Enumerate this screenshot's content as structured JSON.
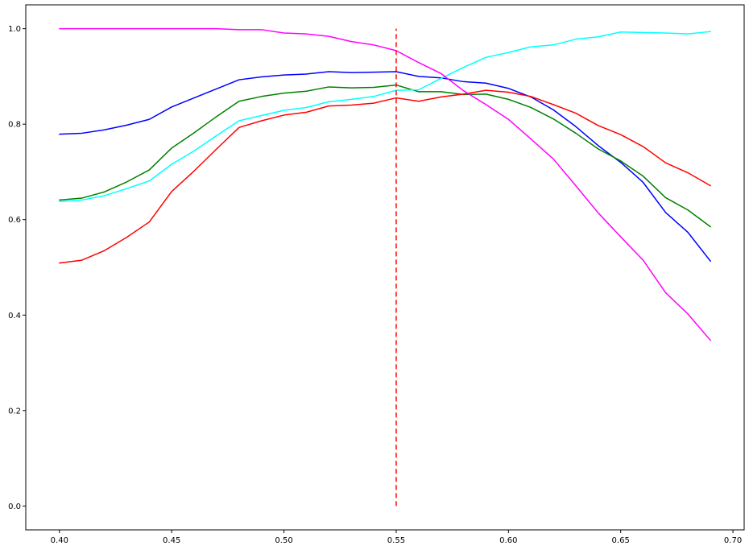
{
  "chart_data": {
    "type": "line",
    "title": "",
    "xlabel": "",
    "ylabel": "",
    "xlim": [
      0.385,
      0.705
    ],
    "ylim": [
      -0.05,
      1.05
    ],
    "grid": false,
    "x": [
      0.4,
      0.41,
      0.42,
      0.43,
      0.44,
      0.45,
      0.46,
      0.47,
      0.48,
      0.49,
      0.5,
      0.51,
      0.52,
      0.53,
      0.54,
      0.55,
      0.56,
      0.57,
      0.58,
      0.59,
      0.6,
      0.61,
      0.62,
      0.63,
      0.64,
      0.65,
      0.66,
      0.67,
      0.68,
      0.69
    ],
    "x_ticks": [
      "0.40",
      "0.45",
      "0.50",
      "0.55",
      "0.60",
      "0.65",
      "0.70"
    ],
    "y_ticks": [
      "0.0",
      "0.2",
      "0.4",
      "0.6",
      "0.8",
      "1.0"
    ],
    "x_tick_values": [
      0.4,
      0.45,
      0.5,
      0.55,
      0.6,
      0.65,
      0.7
    ],
    "y_tick_values": [
      0.0,
      0.2,
      0.4,
      0.6,
      0.8,
      1.0
    ],
    "series": [
      {
        "color": "#0000ff",
        "values": [
          0.779,
          0.781,
          0.788,
          0.798,
          0.81,
          0.836,
          0.855,
          0.874,
          0.893,
          0.899,
          0.903,
          0.905,
          0.91,
          0.908,
          0.909,
          0.91,
          0.9,
          0.897,
          0.889,
          0.886,
          0.875,
          0.857,
          0.83,
          0.795,
          0.755,
          0.72,
          0.678,
          0.615,
          0.573,
          0.513
        ]
      },
      {
        "color": "#008000",
        "values": [
          0.641,
          0.645,
          0.658,
          0.679,
          0.704,
          0.75,
          0.782,
          0.816,
          0.848,
          0.858,
          0.865,
          0.869,
          0.878,
          0.876,
          0.877,
          0.882,
          0.868,
          0.868,
          0.862,
          0.863,
          0.852,
          0.835,
          0.811,
          0.781,
          0.748,
          0.723,
          0.691,
          0.646,
          0.62,
          0.585
        ]
      },
      {
        "color": "#00ffff",
        "values": [
          0.638,
          0.641,
          0.65,
          0.665,
          0.681,
          0.716,
          0.744,
          0.776,
          0.807,
          0.818,
          0.829,
          0.835,
          0.847,
          0.852,
          0.858,
          0.871,
          0.872,
          0.896,
          0.919,
          0.94,
          0.95,
          0.962,
          0.966,
          0.978,
          0.983,
          0.993,
          0.992,
          0.991,
          0.989,
          0.994
        ]
      },
      {
        "color": "#ff0000",
        "values": [
          0.509,
          0.515,
          0.535,
          0.563,
          0.595,
          0.659,
          0.702,
          0.748,
          0.793,
          0.807,
          0.819,
          0.825,
          0.838,
          0.84,
          0.844,
          0.855,
          0.848,
          0.857,
          0.863,
          0.871,
          0.867,
          0.858,
          0.841,
          0.823,
          0.797,
          0.778,
          0.753,
          0.719,
          0.698,
          0.671
        ]
      },
      {
        "color": "#ff00ff",
        "values": [
          1.0,
          1.0,
          1.0,
          1.0,
          1.0,
          1.0,
          1.0,
          1.0,
          0.998,
          0.998,
          0.991,
          0.989,
          0.984,
          0.973,
          0.966,
          0.954,
          0.929,
          0.906,
          0.87,
          0.841,
          0.81,
          0.769,
          0.727,
          0.671,
          0.614,
          0.564,
          0.515,
          0.447,
          0.402,
          0.347
        ]
      }
    ],
    "reference_line": {
      "x": 0.55,
      "y_range": [
        0.0,
        1.0
      ],
      "color": "#ff0000",
      "style": "dashed"
    }
  }
}
